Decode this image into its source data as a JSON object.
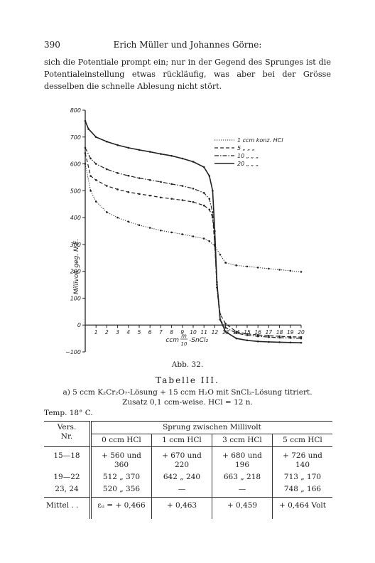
{
  "header": {
    "page_number": "390",
    "running_title": "Erich Müller und Johannes Görne:"
  },
  "intro_text": "sich die Potentiale prompt ein; nur in der Gegend des Sprunges ist die Potentialeinstellung etwas rückläufig, was aber bei der Grösse desselben die schnelle Ablesung nicht stört.",
  "figure": {
    "caption": "Abb. 32.",
    "ylabel": "Millivolt geg. N.E.",
    "xlabel_main": "ccm",
    "xlabel_frac_num": "m",
    "xlabel_frac_den": "10",
    "xlabel_tail": "-SnCl₂",
    "y_ticks": [
      "800",
      "700",
      "600",
      "500",
      "400",
      "300",
      "200",
      "100",
      "0",
      "−100"
    ],
    "x_ticks": [
      "1",
      "2",
      "3",
      "4",
      "5",
      "6",
      "7",
      "8",
      "9",
      "10",
      "11",
      "12",
      "13",
      "14",
      "15",
      "16",
      "17",
      "18",
      "19",
      "20"
    ],
    "legend": [
      {
        "label": "1 ccm konz. HCl",
        "style": "dotted"
      },
      {
        "label": "5 „ „ „",
        "style": "dashed"
      },
      {
        "label": "10 „ „ „",
        "style": "dashdot"
      },
      {
        "label": "20 „ „ „",
        "style": "solid"
      }
    ]
  },
  "chart_data": {
    "type": "line",
    "title": "",
    "xlabel": "ccm m/10-SnCl₂",
    "ylabel": "Millivolt geg. N.E.",
    "xlim": [
      0,
      20
    ],
    "ylim": [
      -100,
      800
    ],
    "series": [
      {
        "name": "1 ccm konz. HCl",
        "x": [
          0,
          0.5,
          1,
          2,
          3,
          4,
          5,
          6,
          7,
          8,
          9,
          10,
          11,
          11.5,
          12,
          12.5,
          13,
          14,
          15,
          16,
          17,
          18,
          19,
          20
        ],
        "y": [
          600,
          500,
          460,
          420,
          400,
          385,
          372,
          362,
          352,
          345,
          338,
          330,
          322,
          312,
          295,
          262,
          232,
          222,
          218,
          214,
          210,
          206,
          202,
          198
        ]
      },
      {
        "name": "5 „ „ „",
        "x": [
          0,
          0.5,
          1,
          2,
          3,
          4,
          5,
          6,
          7,
          8,
          9,
          10,
          11,
          11.5,
          11.8,
          12,
          12.2,
          12.5,
          13,
          14,
          15,
          16,
          17,
          18,
          19,
          20
        ],
        "y": [
          640,
          555,
          540,
          518,
          505,
          495,
          488,
          482,
          475,
          470,
          465,
          458,
          445,
          430,
          400,
          300,
          150,
          40,
          5,
          -25,
          -33,
          -37,
          -40,
          -42,
          -44,
          -45
        ]
      },
      {
        "name": "10 „ „ „",
        "x": [
          0,
          0.5,
          1,
          2,
          3,
          4,
          5,
          6,
          7,
          8,
          9,
          10,
          11,
          11.5,
          11.8,
          12,
          12.2,
          12.5,
          13,
          14,
          15,
          16,
          17,
          18,
          19,
          20
        ],
        "y": [
          660,
          620,
          600,
          580,
          566,
          556,
          547,
          540,
          533,
          525,
          518,
          508,
          492,
          470,
          420,
          300,
          140,
          20,
          -10,
          -30,
          -38,
          -42,
          -45,
          -47,
          -48,
          -50
        ]
      },
      {
        "name": "20 „ „ „",
        "x": [
          0,
          0.3,
          1,
          2,
          3,
          4,
          5,
          6,
          7,
          8,
          9,
          10,
          11,
          11.5,
          11.8,
          12,
          12.2,
          12.5,
          13,
          14,
          15,
          16,
          17,
          18,
          19,
          20
        ],
        "y": [
          760,
          730,
          700,
          683,
          670,
          660,
          652,
          645,
          637,
          630,
          620,
          608,
          588,
          555,
          500,
          350,
          160,
          20,
          -25,
          -50,
          -57,
          -61,
          -63,
          -64,
          -65,
          -66
        ]
      }
    ]
  },
  "table": {
    "title": "Tabelle III.",
    "subtitle_line1": "a) 5 ccm K₂Cr₂O₇-Lösung + 15 ccm H₂O mit SnCl₂-Lösung titriert.",
    "subtitle_line2": "Zusatz 0,1 ccm-weise.  HCl = 12 n.",
    "temp": "Temp. 18° C.",
    "col_vers_line1": "Vers.",
    "col_vers_line2": "Nr.",
    "group_header": "Sprung zwischen Millivolt",
    "columns": [
      "0 ccm HCl",
      "1 ccm HCl",
      "3 ccm HCl",
      "5 ccm HCl"
    ],
    "rows": [
      {
        "nr": "15—18",
        "c0": "+ 560 und 360",
        "c1": "+ 670 und 220",
        "c2": "+ 680 und 196",
        "c3": "+ 726 und 140"
      },
      {
        "nr": "19—22",
        "c0": "512  „  370",
        "c1": "642  „  240",
        "c2": "663  „  218",
        "c3": "713  „  170"
      },
      {
        "nr": "23, 24",
        "c0": "520  „  356",
        "c1": "—",
        "c2": "—",
        "c3": "748  „  166"
      }
    ],
    "mean": {
      "label": "Mittel . .",
      "c0": "εᵤ = + 0,466",
      "c1": "+ 0,463",
      "c2": "+ 0,459",
      "c3": "+ 0,464 Volt"
    }
  }
}
